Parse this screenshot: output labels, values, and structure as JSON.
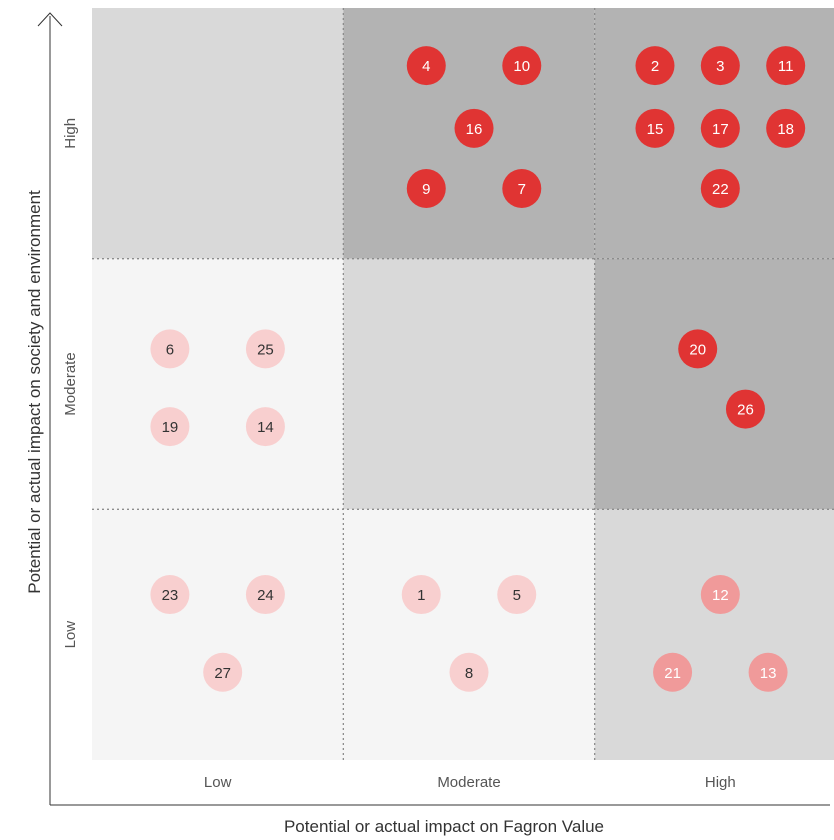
{
  "chart_data": {
    "type": "scatter",
    "subtype": "materiality-matrix",
    "xlabel": "Potential or actual impact on Fagron Value",
    "ylabel": "Potential or actual impact on society and environment",
    "x_categories": [
      "Low",
      "Moderate",
      "High"
    ],
    "y_categories": [
      "Low",
      "Moderate",
      "High"
    ],
    "grid": true,
    "zone_colors": {
      "low": "#f5f5f5",
      "medium": "#d9d9d9",
      "high": "#b3b3b3"
    },
    "cells": [
      {
        "x": "Low",
        "y": "High",
        "zone": "medium"
      },
      {
        "x": "Moderate",
        "y": "High",
        "zone": "high"
      },
      {
        "x": "High",
        "y": "High",
        "zone": "high"
      },
      {
        "x": "Low",
        "y": "Moderate",
        "zone": "low"
      },
      {
        "x": "Moderate",
        "y": "Moderate",
        "zone": "medium"
      },
      {
        "x": "High",
        "y": "Moderate",
        "zone": "high"
      },
      {
        "x": "Low",
        "y": "Low",
        "zone": "low"
      },
      {
        "x": "Moderate",
        "y": "Low",
        "zone": "low"
      },
      {
        "x": "High",
        "y": "Low",
        "zone": "medium"
      }
    ],
    "marker_styles": {
      "high": {
        "fill": "#e03433",
        "text": "#ffffff"
      },
      "medium": {
        "fill": "#f09a9a",
        "text": "#ffffff"
      },
      "low": {
        "fill": "#f8cfcf",
        "text": "#333333"
      }
    },
    "points": [
      {
        "label": "4",
        "x": 1.33,
        "y": 2.77,
        "style": "high"
      },
      {
        "label": "10",
        "x": 1.71,
        "y": 2.77,
        "style": "high"
      },
      {
        "label": "16",
        "x": 1.52,
        "y": 2.52,
        "style": "high"
      },
      {
        "label": "9",
        "x": 1.33,
        "y": 2.28,
        "style": "high"
      },
      {
        "label": "7",
        "x": 1.71,
        "y": 2.28,
        "style": "high"
      },
      {
        "label": "2",
        "x": 2.24,
        "y": 2.77,
        "style": "high"
      },
      {
        "label": "3",
        "x": 2.5,
        "y": 2.77,
        "style": "high"
      },
      {
        "label": "11",
        "x": 2.76,
        "y": 2.77,
        "style": "high"
      },
      {
        "label": "15",
        "x": 2.24,
        "y": 2.52,
        "style": "high"
      },
      {
        "label": "17",
        "x": 2.5,
        "y": 2.52,
        "style": "high"
      },
      {
        "label": "18",
        "x": 2.76,
        "y": 2.52,
        "style": "high"
      },
      {
        "label": "22",
        "x": 2.5,
        "y": 2.28,
        "style": "high"
      },
      {
        "label": "20",
        "x": 2.41,
        "y": 1.64,
        "style": "high"
      },
      {
        "label": "26",
        "x": 2.6,
        "y": 1.4,
        "style": "high"
      },
      {
        "label": "6",
        "x": 0.31,
        "y": 1.64,
        "style": "low"
      },
      {
        "label": "25",
        "x": 0.69,
        "y": 1.64,
        "style": "low"
      },
      {
        "label": "19",
        "x": 0.31,
        "y": 1.33,
        "style": "low"
      },
      {
        "label": "14",
        "x": 0.69,
        "y": 1.33,
        "style": "low"
      },
      {
        "label": "23",
        "x": 0.31,
        "y": 0.66,
        "style": "low"
      },
      {
        "label": "24",
        "x": 0.69,
        "y": 0.66,
        "style": "low"
      },
      {
        "label": "27",
        "x": 0.52,
        "y": 0.35,
        "style": "low"
      },
      {
        "label": "1",
        "x": 1.31,
        "y": 0.66,
        "style": "low"
      },
      {
        "label": "5",
        "x": 1.69,
        "y": 0.66,
        "style": "low"
      },
      {
        "label": "8",
        "x": 1.5,
        "y": 0.35,
        "style": "low"
      },
      {
        "label": "12",
        "x": 2.5,
        "y": 0.66,
        "style": "medium"
      },
      {
        "label": "21",
        "x": 2.31,
        "y": 0.35,
        "style": "medium"
      },
      {
        "label": "13",
        "x": 2.69,
        "y": 0.35,
        "style": "medium"
      }
    ]
  }
}
